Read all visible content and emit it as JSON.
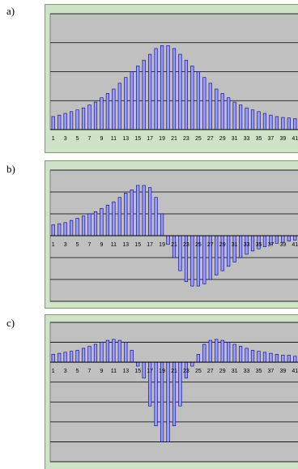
{
  "chart_data": [
    {
      "type": "bar",
      "panel_label": "a)",
      "color": "#9999ff",
      "grid": true,
      "categories": [
        "1",
        null,
        "3",
        null,
        "5",
        null,
        "7",
        null,
        "9",
        null,
        "11",
        null,
        "13",
        null,
        "15",
        null,
        "17",
        null,
        "19",
        null,
        "21",
        null,
        "23",
        null,
        "25",
        null,
        "27",
        null,
        "29",
        null,
        "31",
        null,
        "33",
        null,
        "35",
        null,
        "37",
        null,
        "39",
        null,
        "41"
      ],
      "values": [
        0.45,
        0.5,
        0.56,
        0.62,
        0.68,
        0.75,
        0.85,
        0.95,
        1.1,
        1.25,
        1.4,
        1.6,
        1.8,
        2.0,
        2.2,
        2.4,
        2.6,
        2.8,
        2.9,
        2.9,
        2.8,
        2.6,
        2.4,
        2.2,
        2.0,
        1.8,
        1.6,
        1.4,
        1.25,
        1.1,
        0.95,
        0.85,
        0.75,
        0.68,
        0.62,
        0.56,
        0.5,
        0.45,
        0.42,
        0.4,
        0.38
      ],
      "ylim": [
        0,
        4
      ],
      "yticks": [
        0,
        1,
        2,
        3,
        4
      ]
    },
    {
      "type": "bar",
      "panel_label": "b)",
      "color": "#9999ff",
      "grid": true,
      "categories": [
        "1",
        null,
        "3",
        null,
        "5",
        null,
        "7",
        null,
        "9",
        null,
        "11",
        null,
        "13",
        null,
        "15",
        null,
        "17",
        null,
        "19",
        null,
        "21",
        null,
        "23",
        null,
        "25",
        null,
        "27",
        null,
        "29",
        null,
        "31",
        null,
        "33",
        null,
        "35",
        null,
        "37",
        null,
        "39",
        null,
        "41"
      ],
      "values": [
        0.5,
        0.55,
        0.6,
        0.7,
        0.8,
        0.9,
        1.0,
        1.1,
        1.25,
        1.4,
        1.55,
        1.75,
        1.95,
        2.1,
        2.3,
        2.3,
        2.2,
        1.75,
        1.0,
        -0.4,
        -1.0,
        -1.6,
        -2.1,
        -2.3,
        -2.3,
        -2.2,
        -2.0,
        -1.8,
        -1.6,
        -1.4,
        -1.2,
        -1.0,
        -0.85,
        -0.7,
        -0.6,
        -0.5,
        -0.4,
        -0.35,
        -0.3,
        -0.25,
        -0.2
      ],
      "ylim": [
        -3,
        3
      ],
      "yticks": [
        -3,
        -2,
        -1,
        0,
        1,
        2,
        3
      ]
    },
    {
      "type": "bar",
      "panel_label": "c)",
      "color": "#9999ff",
      "grid": true,
      "categories": [
        "1",
        null,
        "3",
        null,
        "5",
        null,
        "7",
        null,
        "9",
        null,
        "11",
        null,
        "13",
        null,
        "15",
        null,
        "17",
        null,
        "19",
        null,
        "21",
        null,
        "23",
        null,
        "25",
        null,
        "27",
        null,
        "29",
        null,
        "31",
        null,
        "33",
        null,
        "35",
        null,
        "37",
        null,
        "39",
        null,
        "41"
      ],
      "values": [
        0.4,
        0.45,
        0.5,
        0.55,
        0.6,
        0.7,
        0.8,
        0.9,
        1.0,
        1.1,
        1.15,
        1.1,
        1.0,
        0.6,
        -0.2,
        -0.8,
        -2.2,
        -3.2,
        -4.0,
        -4.0,
        -3.2,
        -2.2,
        -0.8,
        -0.2,
        0.4,
        0.9,
        1.1,
        1.15,
        1.1,
        1.0,
        0.9,
        0.8,
        0.7,
        0.6,
        0.55,
        0.5,
        0.45,
        0.4,
        0.35,
        0.35,
        0.3
      ],
      "ylim": [
        -5,
        2
      ],
      "yticks": [
        -5,
        -4,
        -3,
        -2,
        -1,
        0,
        1,
        2
      ]
    }
  ]
}
